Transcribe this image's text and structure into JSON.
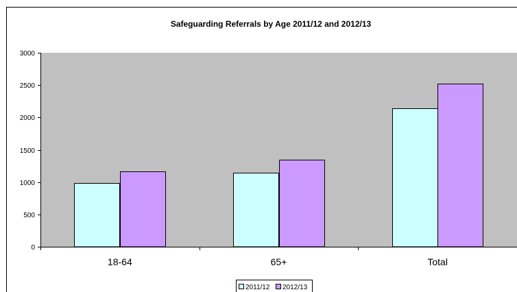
{
  "chart_data": {
    "type": "bar",
    "title": "Safeguarding Referrals by Age 2011/12 and 2012/13",
    "xlabel": "",
    "ylabel": "",
    "categories": [
      "18-64",
      "65+",
      "Total"
    ],
    "series": [
      {
        "name": "2011/12",
        "values": [
          990,
          1150,
          2145
        ],
        "color": "#ccffff"
      },
      {
        "name": "2012/13",
        "values": [
          1170,
          1345,
          2520
        ],
        "color": "#cc99ff"
      }
    ],
    "ylim": [
      0,
      3000
    ],
    "yticks": [
      0,
      500,
      1000,
      1500,
      2000,
      2500,
      3000
    ],
    "grid": false,
    "legend": "bottom",
    "plot_background": "#c0c0c0"
  }
}
